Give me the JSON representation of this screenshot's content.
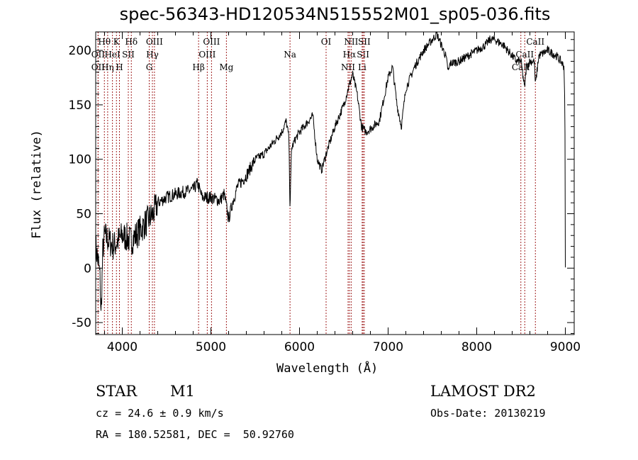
{
  "chart_data": {
    "type": "line",
    "title": "spec-56343-HD120534N515552M01_sp05-036.fits",
    "xlabel": "Wavelength (Å)",
    "ylabel": "Flux (relative)",
    "xlim": [
      3700,
      9100
    ],
    "ylim": [
      -61,
      217
    ],
    "xticks": [
      4000,
      5000,
      6000,
      7000,
      8000,
      9000
    ],
    "yticks": [
      -50,
      0,
      50,
      100,
      150,
      200
    ],
    "series": [
      {
        "name": "spectrum",
        "x": [
          3700,
          3730,
          3750,
          3760,
          3780,
          3800,
          3850,
          3900,
          3950,
          4000,
          4050,
          4100,
          4150,
          4200,
          4250,
          4300,
          4350,
          4400,
          4500,
          4600,
          4700,
          4800,
          4850,
          4900,
          5000,
          5100,
          5150,
          5200,
          5250,
          5300,
          5400,
          5500,
          5600,
          5700,
          5800,
          5850,
          5880,
          5893,
          5910,
          5950,
          6000,
          6100,
          6150,
          6200,
          6250,
          6300,
          6400,
          6500,
          6550,
          6600,
          6650,
          6700,
          6750,
          6800,
          6900,
          7000,
          7050,
          7100,
          7150,
          7200,
          7300,
          7400,
          7500,
          7550,
          7600,
          7650,
          7680,
          7700,
          7800,
          7900,
          8000,
          8100,
          8150,
          8200,
          8300,
          8400,
          8450,
          8500,
          8540,
          8560,
          8600,
          8650,
          8662,
          8700,
          8800,
          8900,
          8950,
          8985,
          8995,
          9000
        ],
        "y": [
          20,
          5,
          -10,
          -45,
          15,
          30,
          25,
          20,
          25,
          30,
          28,
          25,
          30,
          35,
          40,
          45,
          50,
          60,
          65,
          68,
          70,
          72,
          78,
          65,
          65,
          62,
          68,
          45,
          62,
          75,
          85,
          100,
          105,
          115,
          125,
          135,
          120,
          55,
          110,
          118,
          125,
          135,
          140,
          100,
          90,
          105,
          130,
          150,
          165,
          178,
          160,
          130,
          125,
          128,
          135,
          175,
          185,
          150,
          130,
          165,
          185,
          200,
          210,
          215,
          205,
          195,
          180,
          188,
          190,
          195,
          200,
          205,
          210,
          210,
          205,
          195,
          190,
          190,
          165,
          185,
          190,
          190,
          168,
          195,
          200,
          195,
          190,
          185,
          150,
          0
        ]
      }
    ],
    "lines": [
      {
        "name": "OII",
        "wl": 3727,
        "row": 2
      },
      {
        "name": "Hθ",
        "wl": 3798,
        "row": 0
      },
      {
        "name": "OII",
        "wl": 3727,
        "row": 1
      },
      {
        "name": "Hη",
        "wl": 3835,
        "row": 2
      },
      {
        "name": "HeI",
        "wl": 3889,
        "row": 1
      },
      {
        "name": "K",
        "wl": 3934,
        "row": 0
      },
      {
        "name": "H",
        "wl": 3968,
        "row": 2
      },
      {
        "name": "SII",
        "wl": 4068,
        "row": 1
      },
      {
        "name": "Hδ",
        "wl": 4102,
        "row": 0
      },
      {
        "name": "G",
        "wl": 4304,
        "row": 2
      },
      {
        "name": "Hγ",
        "wl": 4340,
        "row": 1
      },
      {
        "name": "OIII",
        "wl": 4363,
        "row": 0
      },
      {
        "name": "Hβ",
        "wl": 4861,
        "row": 2
      },
      {
        "name": "OIII",
        "wl": 4959,
        "row": 1
      },
      {
        "name": "OIII",
        "wl": 5007,
        "row": 0
      },
      {
        "name": "Mg",
        "wl": 5175,
        "row": 2
      },
      {
        "name": "Na",
        "wl": 5893,
        "row": 1
      },
      {
        "name": "OI",
        "wl": 6300,
        "row": 0
      },
      {
        "name": "NII",
        "wl": 6548,
        "row": 2
      },
      {
        "name": "Hα",
        "wl": 6563,
        "row": 1
      },
      {
        "name": "NII",
        "wl": 6583,
        "row": 0
      },
      {
        "name": "Li",
        "wl": 6707,
        "row": 2
      },
      {
        "name": "SII",
        "wl": 6717,
        "row": 1
      },
      {
        "name": "SII",
        "wl": 6731,
        "row": 0
      },
      {
        "name": "CaII",
        "wl": 8498,
        "row": 2
      },
      {
        "name": "CaII",
        "wl": 8542,
        "row": 1
      },
      {
        "name": "CaII",
        "wl": 8662,
        "row": 0
      }
    ]
  },
  "info": {
    "object_class": "STAR",
    "subclass": "M1",
    "cz": "cz = 24.6 ± 0.9 km/s",
    "coords": "RA = 180.52581, DEC =  50.92760",
    "survey": "LAMOST DR2",
    "obs_date": "Obs-Date: 20130219"
  }
}
